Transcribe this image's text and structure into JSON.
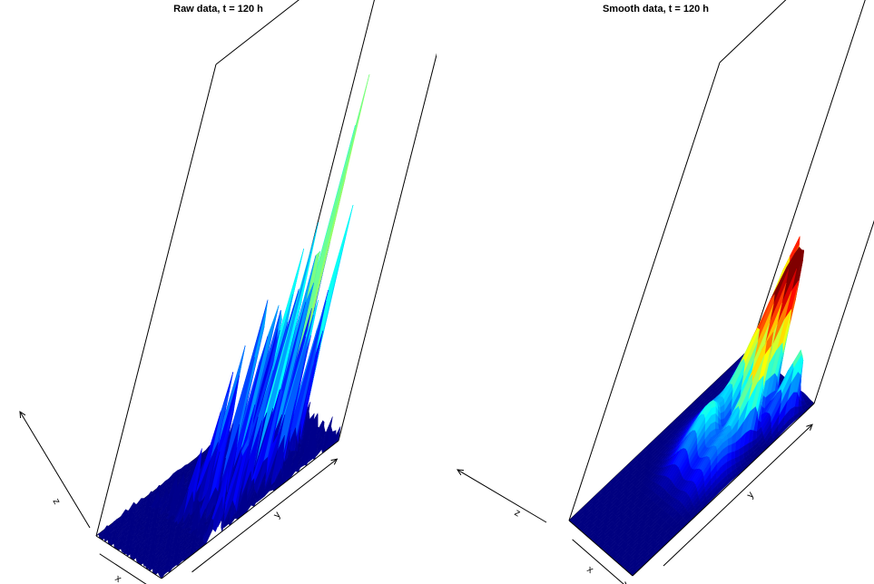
{
  "chart_data": [
    {
      "type": "surface",
      "title": "Raw data, t = 120 h",
      "xlabel": "x",
      "ylabel": "y",
      "zlabel": "z",
      "colormap": "jet",
      "colors": {
        "low": "#00008f",
        "high": "#b00000",
        "base": "#0a1f9c",
        "box": "#000000"
      },
      "peaks": [
        {
          "x": 0.3,
          "y": 0.94,
          "z": 0.7
        },
        {
          "x": 0.52,
          "y": 0.82,
          "z": 0.8
        },
        {
          "x": 0.6,
          "y": 0.74,
          "z": 0.58
        },
        {
          "x": 0.72,
          "y": 0.62,
          "z": 0.62
        },
        {
          "x": 0.66,
          "y": 0.86,
          "z": 0.52
        },
        {
          "x": 0.78,
          "y": 0.72,
          "z": 0.42
        },
        {
          "x": 0.88,
          "y": 0.66,
          "z": 0.38
        },
        {
          "x": 0.46,
          "y": 0.7,
          "z": 0.48
        },
        {
          "x": 0.36,
          "y": 0.6,
          "z": 0.4
        },
        {
          "x": 0.56,
          "y": 0.56,
          "z": 0.46
        },
        {
          "x": 0.64,
          "y": 0.46,
          "z": 0.3
        },
        {
          "x": 0.8,
          "y": 0.52,
          "z": 0.28
        },
        {
          "x": 0.28,
          "y": 0.76,
          "z": 0.36
        },
        {
          "x": 0.92,
          "y": 0.4,
          "z": 0.22
        },
        {
          "x": 0.44,
          "y": 0.48,
          "z": 0.34
        },
        {
          "x": 0.7,
          "y": 0.36,
          "z": 0.2
        },
        {
          "x": 0.5,
          "y": 0.4,
          "z": 0.26
        },
        {
          "x": 0.84,
          "y": 0.44,
          "z": 0.24
        },
        {
          "x": 0.22,
          "y": 0.86,
          "z": 0.3
        },
        {
          "x": 0.4,
          "y": 0.88,
          "z": 0.5
        },
        {
          "x": 0.74,
          "y": 0.8,
          "z": 0.36
        },
        {
          "x": 0.6,
          "y": 0.64,
          "z": 0.44
        },
        {
          "x": 0.32,
          "y": 0.5,
          "z": 0.22
        },
        {
          "x": 0.54,
          "y": 0.3,
          "z": 0.16
        },
        {
          "x": 0.86,
          "y": 0.58,
          "z": 0.26
        },
        {
          "x": 0.96,
          "y": 0.3,
          "z": 0.14
        }
      ]
    },
    {
      "type": "surface",
      "title": "Smooth data, t = 120 h",
      "xlabel": "x",
      "ylabel": "y",
      "zlabel": "z",
      "colormap": "jet",
      "colors": {
        "low": "#00008f",
        "high": "#b00000",
        "base": "#0a1f9c",
        "box": "#000000"
      },
      "peaks": [
        {
          "x": 0.2,
          "y": 0.97,
          "z": 0.28,
          "sx": 0.06,
          "sy": 0.05
        },
        {
          "x": 0.52,
          "y": 0.8,
          "z": 0.25,
          "sx": 0.07,
          "sy": 0.06
        },
        {
          "x": 0.48,
          "y": 0.72,
          "z": 0.17,
          "sx": 0.07,
          "sy": 0.06
        },
        {
          "x": 0.72,
          "y": 0.66,
          "z": 0.24,
          "sx": 0.06,
          "sy": 0.05
        },
        {
          "x": 0.62,
          "y": 0.8,
          "z": 0.18,
          "sx": 0.06,
          "sy": 0.05
        },
        {
          "x": 0.84,
          "y": 0.86,
          "z": 0.15,
          "sx": 0.06,
          "sy": 0.05
        },
        {
          "x": 0.5,
          "y": 0.5,
          "z": 0.12,
          "sx": 0.1,
          "sy": 0.07
        },
        {
          "x": 0.78,
          "y": 0.5,
          "z": 0.08,
          "sx": 0.09,
          "sy": 0.08
        },
        {
          "x": 0.34,
          "y": 0.62,
          "z": 0.06,
          "sx": 0.1,
          "sy": 0.08
        }
      ]
    }
  ]
}
